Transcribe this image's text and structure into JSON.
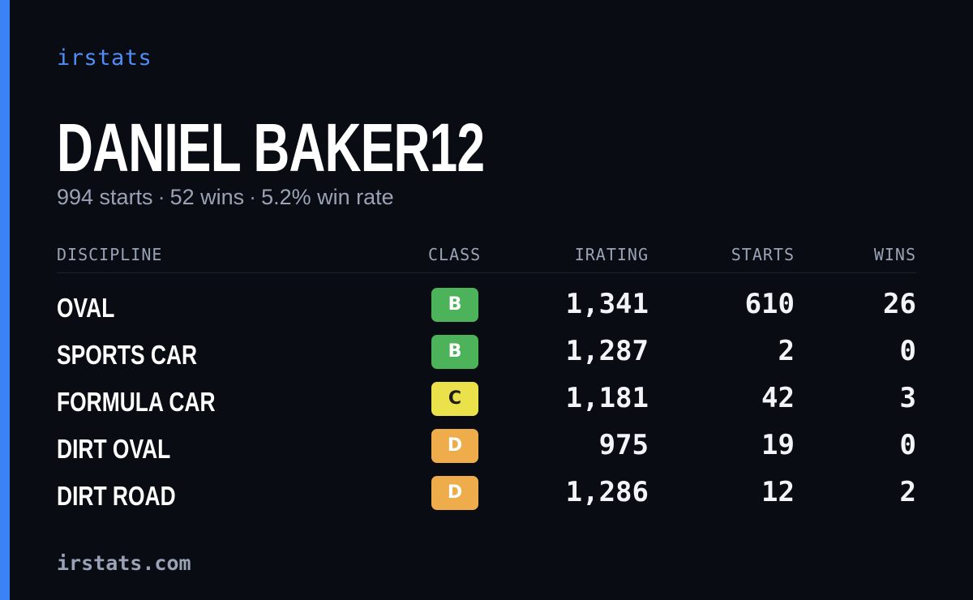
{
  "brand": "irstats",
  "player": {
    "name": "DANIEL BAKER12",
    "starts_text": "994 starts",
    "wins_text": "52 wins",
    "win_rate_text": "5.2% win rate",
    "separator": "·"
  },
  "table": {
    "headers": {
      "discipline": "DISCIPLINE",
      "class": "CLASS",
      "irating": "IRATING",
      "starts": "STARTS",
      "wins": "WINS"
    },
    "rows": [
      {
        "discipline": "OVAL",
        "class": "B",
        "irating": "1,341",
        "starts": "610",
        "wins": "26"
      },
      {
        "discipline": "SPORTS CAR",
        "class": "B",
        "irating": "1,287",
        "starts": "2",
        "wins": "0"
      },
      {
        "discipline": "FORMULA CAR",
        "class": "C",
        "irating": "1,181",
        "starts": "42",
        "wins": "3"
      },
      {
        "discipline": "DIRT OVAL",
        "class": "D",
        "irating": "975",
        "starts": "19",
        "wins": "0"
      },
      {
        "discipline": "DIRT ROAD",
        "class": "D",
        "irating": "1,286",
        "starts": "12",
        "wins": "2"
      }
    ]
  },
  "colors": {
    "accent": "#3b82f6",
    "background": "#0a0c13",
    "class_b": "#4db35a",
    "class_c": "#ebe14a",
    "class_d": "#efac4a"
  },
  "footer": "irstats.com"
}
